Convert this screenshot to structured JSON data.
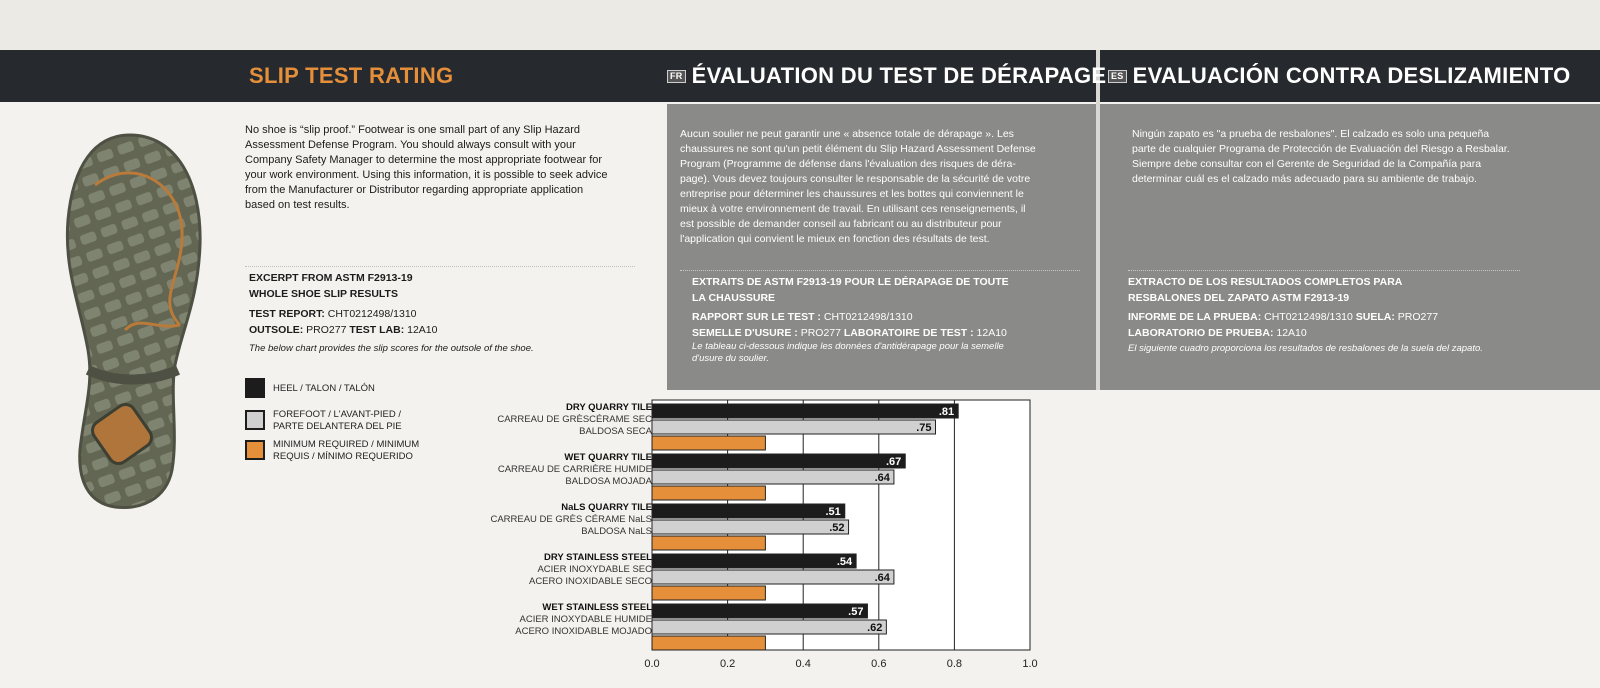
{
  "headers": {
    "en": "SLIP TEST RATING",
    "fr_badge": "FR",
    "fr": "ÉVALUATION DU TEST DE DÉRAPAGE",
    "es_badge": "ES",
    "es": "EVALUACIÓN CONTRA DESLIZAMIENTO"
  },
  "intro": {
    "en": [
      "No shoe is “slip proof.” Footwear is one small part of any Slip Hazard",
      "Assessment Defense Program. You should always consult with your",
      "Company Safety Manager to determine the most appropriate footwear for",
      "your work environment. Using this information, it is possible to seek advice",
      "from the Manufacturer or Distributor regarding appropriate application",
      "based on test results."
    ],
    "fr": [
      "Aucun soulier ne peut garantir une « absence totale de dérapage ». Les",
      "chaussures ne sont qu'un petit élément du Slip Hazard Assessment Defense",
      "Program (Programme de défense dans l'évaluation des risques de déra-",
      "page). Vous devez toujours consulter le responsable de la sécurité de votre",
      "entreprise pour déterminer les chaussures et les bottes qui conviennent le",
      "mieux à votre environnement de travail. En utilisant ces renseignements, il",
      "est possible de demander conseil au fabricant ou au distributeur pour",
      "l'application qui convient le mieux en fonction des résultats de test."
    ],
    "es": [
      "Ningún zapato es \"a prueba de resbalones\". El calzado es solo una pequeña",
      "parte de cualquier Programa de Protección de Evaluación del Riesgo a Resbalar.",
      "Siempre debe consultar con el Gerente de Seguridad de la Compañía para",
      "determinar cuál es el calzado más adecuado para su ambiente de trabajo."
    ]
  },
  "excerpt": {
    "en": {
      "title1": "EXCERPT FROM ASTM F2913-19",
      "title2": "WHOLE SHOE SLIP RESULTS",
      "report_label": "TEST REPORT:",
      "report_value": "CHT0212498/1310",
      "outsole_label": "OUTSOLE:",
      "outsole_value": "PRO277",
      "lab_label": "TEST LAB:",
      "lab_value": "12A10",
      "note": "The below chart provides the slip scores for the outsole of the shoe."
    },
    "fr": {
      "title1": "EXTRAITS DE ASTM F2913-19 POUR LE DÉRAPAGE DE TOUTE",
      "title2": "LA CHAUSSURE",
      "report_label": "RAPPORT SUR LE TEST :",
      "report_value": "CHT0212498/1310",
      "outsole_label": "SEMELLE D'USURE :",
      "outsole_value": "PRO277",
      "lab_label": "LABORATOIRE DE TEST :",
      "lab_value": "12A10",
      "note1": "Le tableau ci-dessous indique les données d'antidérapage pour la semelle",
      "note2": "d'usure du soulier."
    },
    "es": {
      "title1": "EXTRACTO DE LOS RESULTADOS COMPLETOS PARA",
      "title2": "RESBALONES DEL ZAPATO ASTM F2913-19",
      "report_label": "INFORME DE LA PRUEBA:",
      "report_value": "CHT0212498/1310",
      "outsole_label": "SUELA:",
      "outsole_value": "PRO277",
      "lab_label": "LABORATORIO DE PRUEBA:",
      "lab_value": "12A10",
      "note": "El siguiente cuadro proporciona los resultados de resbalones de la suela del zapato."
    }
  },
  "legend": [
    {
      "line1": "HEEL / TALON / TALÓN",
      "line2": "",
      "color": "#1c1c1c"
    },
    {
      "line1": "FOREFOOT / L'AVANT-PIED /",
      "line2": "PARTE DELANTERA DEL PIE",
      "color": "#d0d0d0"
    },
    {
      "line1": "MINIMUM REQUIRED / MINIMUM",
      "line2": "REQUIS / MÍNIMO REQUERIDO",
      "color": "#e58f3a"
    }
  ],
  "colors": {
    "heel": "#1c1c1c",
    "forefoot": "#d0d0d0",
    "minimum": "#e58f3a",
    "accent": "#e58f3a",
    "header": "#262a2e",
    "panel": "#8a8a89"
  },
  "chart_data": {
    "type": "bar",
    "orientation": "horizontal",
    "categories": [
      {
        "en": "DRY QUARRY TILE",
        "fr": "CARREAU DE GRÈSCÉRAME SEC",
        "es": "BALDOSA SECA"
      },
      {
        "en": "WET QUARRY TILE",
        "fr": "CARREAU DE CARRIÈRE HUMIDE",
        "es": "BALDOSA MOJADA"
      },
      {
        "en": "NaLS QUARRY TILE",
        "fr": "CARREAU DE GRÈS CÉRAME NaLS",
        "es": "BALDOSA NaLS"
      },
      {
        "en": "DRY STAINLESS STEEL",
        "fr": "ACIER INOXYDABLE SEC",
        "es": "ACERO INOXIDABLE SECO"
      },
      {
        "en": "WET STAINLESS STEEL",
        "fr": "ACIER INOXYDABLE HUMIDE",
        "es": "ACERO INOXIDABLE MOJADO"
      }
    ],
    "series": [
      {
        "name": "HEEL / TALON / TALÓN",
        "values": [
          0.81,
          0.67,
          0.51,
          0.54,
          0.57
        ],
        "labels": [
          ".81",
          ".67",
          ".51",
          ".54",
          ".57"
        ]
      },
      {
        "name": "FOREFOOT / L'AVANT-PIED / PARTE DELANTERA DEL PIE",
        "values": [
          0.75,
          0.64,
          0.52,
          0.64,
          0.62
        ],
        "labels": [
          ".75",
          ".64",
          ".52",
          ".64",
          ".62"
        ]
      },
      {
        "name": "MINIMUM REQUIRED / MINIMUM REQUIS / MÍNIMO REQUERIDO",
        "values": [
          0.3,
          0.3,
          0.3,
          0.3,
          0.3
        ],
        "labels": [
          "",
          "",
          "",
          "",
          ""
        ]
      }
    ],
    "xlim": [
      0.0,
      1.0
    ],
    "xticks": [
      0.0,
      0.2,
      0.4,
      0.6,
      0.8,
      1.0
    ],
    "xtick_labels": [
      "0.0",
      "0.2",
      "0.4",
      "0.6",
      "0.8",
      "1.0"
    ],
    "grid": true,
    "legend": "left"
  }
}
